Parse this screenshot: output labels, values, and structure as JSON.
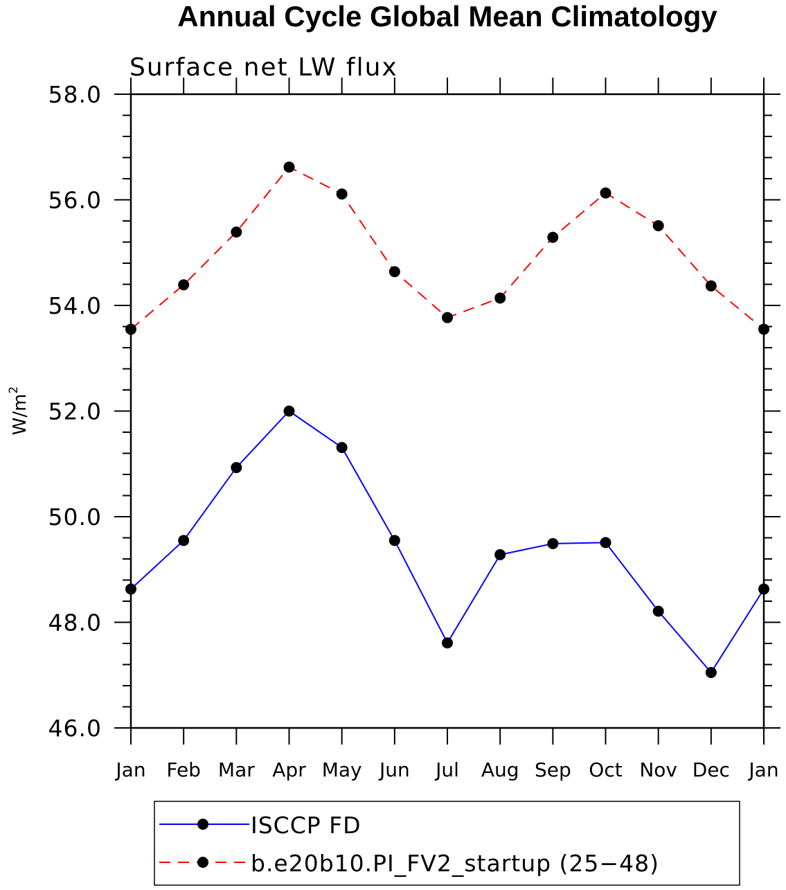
{
  "chart_data": {
    "type": "line",
    "title": "Annual Cycle Global Mean Climatology",
    "subtitle": "Surface net LW flux",
    "ylabel": "W/m",
    "ylabel_superscript": "2",
    "categories": [
      "Jan",
      "Feb",
      "Mar",
      "Apr",
      "May",
      "Jun",
      "Jul",
      "Aug",
      "Sep",
      "Oct",
      "Nov",
      "Dec",
      "Jan"
    ],
    "ylim": [
      46.0,
      58.0
    ],
    "yticks": [
      "46.0",
      "48.0",
      "50.0",
      "52.0",
      "54.0",
      "56.0",
      "58.0"
    ],
    "ytick_values": [
      46,
      48,
      50,
      52,
      54,
      56,
      58
    ],
    "grid": false,
    "legend_position": "bottom",
    "series": [
      {
        "name": "ISCCP FD",
        "color": "#0000ff",
        "line_style": "solid",
        "marker": "filled-circle",
        "values": [
          48.63,
          49.55,
          50.93,
          52.0,
          51.31,
          49.55,
          47.61,
          49.28,
          49.49,
          49.51,
          48.21,
          47.05,
          48.63
        ]
      },
      {
        "name": "b.e20b10.PI_FV2_startup (25−48)",
        "color": "#ff0000",
        "line_style": "dashed",
        "marker": "filled-circle",
        "values": [
          53.55,
          54.39,
          55.39,
          56.62,
          56.11,
          54.64,
          53.77,
          54.14,
          55.29,
          56.13,
          55.51,
          54.37,
          53.55
        ]
      }
    ]
  }
}
